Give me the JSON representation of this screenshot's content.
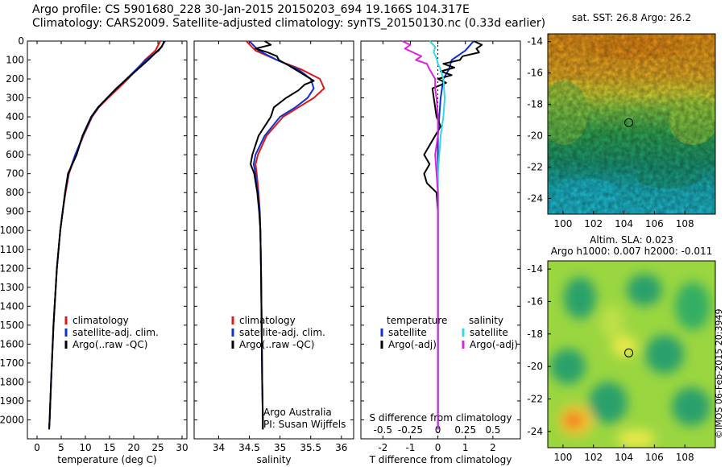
{
  "header": {
    "line1": "Argo profile: CS 5901680_228 30-Jan-2015 20150203_694 19.166S 104.317E",
    "line2": "Climatology: CARS2009. Satellite-adjusted climatology: synTS_20150130.nc (0.33d earlier)"
  },
  "credit": "©IMOS 06-Feb-2015 20:3949",
  "colors": {
    "climatology": "#e01818",
    "satellite": "#1030d0",
    "argo": "#000000",
    "sat_salinity": "#30d8e8",
    "argo_salinity": "#e020e0"
  },
  "chart_data": [
    {
      "type": "line",
      "name": "temperature",
      "xlabel": "temperature (deg C)",
      "xlim": [
        -2,
        31
      ],
      "xticks": [
        0,
        5,
        10,
        15,
        20,
        25,
        30
      ],
      "ylim": [
        0,
        2100
      ],
      "yticks": [
        0,
        100,
        200,
        300,
        400,
        500,
        600,
        700,
        800,
        900,
        1000,
        1100,
        1200,
        1300,
        1400,
        1500,
        1600,
        1700,
        1800,
        1900,
        2000
      ],
      "legend": [
        "climatology",
        "satellite-adj. clim.",
        "Argo(..raw -QC)"
      ],
      "series": [
        {
          "name": "climatology",
          "depth": [
            0,
            50,
            100,
            150,
            200,
            250,
            300,
            350,
            400,
            500,
            600,
            700,
            800,
            900,
            1000,
            1200,
            1500,
            1800,
            2000,
            2050
          ],
          "values": [
            25.5,
            24.5,
            22.3,
            20.6,
            18.8,
            16.8,
            14.7,
            12.8,
            11.4,
            9.6,
            8.0,
            6.6,
            5.9,
            5.3,
            4.8,
            4.1,
            3.4,
            2.9,
            2.6,
            2.5
          ]
        },
        {
          "name": "satellite-adj. clim.",
          "depth": [
            0,
            50,
            100,
            150,
            200,
            250,
            300,
            350,
            400,
            500,
            600,
            700,
            800,
            900,
            1000,
            1200,
            1500,
            1800,
            2000,
            2050
          ],
          "values": [
            26.5,
            25.2,
            22.5,
            20.5,
            18.5,
            16.5,
            14.5,
            12.7,
            11.3,
            9.5,
            7.9,
            6.5,
            5.8,
            5.3,
            4.8,
            4.1,
            3.4,
            2.9,
            2.6,
            2.5
          ]
        },
        {
          "name": "Argo(..raw -QC)",
          "depth": [
            0,
            30,
            60,
            100,
            150,
            200,
            250,
            300,
            350,
            400,
            500,
            600,
            650,
            700,
            800,
            900,
            1000,
            1200,
            1500,
            1800,
            2000,
            2050
          ],
          "values": [
            26.3,
            25.8,
            24.6,
            23.0,
            20.8,
            18.6,
            16.4,
            14.5,
            12.6,
            11.2,
            9.4,
            8.2,
            7.3,
            6.4,
            5.8,
            5.3,
            4.8,
            4.1,
            3.4,
            2.9,
            2.6,
            2.5
          ]
        }
      ]
    },
    {
      "type": "line",
      "name": "salinity",
      "xlabel": "salinity",
      "xlim": [
        33.6,
        36.2
      ],
      "xticks": [
        34,
        34.5,
        35,
        35.5,
        36
      ],
      "ylim": [
        0,
        2100
      ],
      "legend": [
        "climatology",
        "satellite-adj. clim.",
        "Argo(..raw -QC)"
      ],
      "annotation": [
        "Argo Australia",
        "PI: Susan Wijffels"
      ],
      "series": [
        {
          "name": "climatology",
          "depth": [
            0,
            50,
            100,
            150,
            200,
            250,
            300,
            350,
            400,
            500,
            600,
            650,
            700,
            800,
            900,
            1000,
            1200,
            1500,
            1800,
            2000,
            2050
          ],
          "values": [
            34.45,
            34.6,
            34.95,
            35.35,
            35.65,
            35.72,
            35.55,
            35.3,
            35.05,
            34.78,
            34.64,
            34.6,
            34.62,
            34.65,
            34.67,
            34.68,
            34.69,
            34.7,
            34.71,
            34.72,
            34.72
          ]
        },
        {
          "name": "satellite-adj. clim.",
          "depth": [
            0,
            50,
            100,
            150,
            200,
            250,
            300,
            350,
            400,
            500,
            600,
            650,
            700,
            800,
            900,
            1000,
            1200,
            1500,
            1800,
            2000,
            2050
          ],
          "values": [
            34.5,
            34.65,
            34.95,
            35.3,
            35.5,
            35.55,
            35.45,
            35.25,
            35.0,
            34.75,
            34.6,
            34.57,
            34.6,
            34.64,
            34.67,
            34.68,
            34.69,
            34.7,
            34.71,
            34.72,
            34.72
          ]
        },
        {
          "name": "Argo(..raw -QC)",
          "depth": [
            0,
            20,
            40,
            60,
            80,
            100,
            130,
            160,
            190,
            210,
            230,
            260,
            300,
            350,
            400,
            500,
            600,
            650,
            700,
            800,
            900,
            1000,
            1200,
            1500,
            1800,
            2000,
            2050
          ],
          "values": [
            34.75,
            34.85,
            34.6,
            34.8,
            34.95,
            34.98,
            35.15,
            35.3,
            35.45,
            35.55,
            35.4,
            35.3,
            35.1,
            34.9,
            34.85,
            34.65,
            34.55,
            34.52,
            34.58,
            34.63,
            34.66,
            34.68,
            34.69,
            34.7,
            34.71,
            34.72,
            34.72
          ]
        }
      ]
    },
    {
      "type": "line",
      "name": "difference",
      "xlabel": "T difference from climatology",
      "xlabel_top": "S difference from climatology",
      "xlim": [
        -2.8,
        3
      ],
      "xticks": [
        -2,
        -1,
        0,
        1,
        2
      ],
      "xticks_top": [
        "-0.5",
        "-0.25",
        "0",
        "0.25",
        "0.5"
      ],
      "ylim": [
        0,
        2100
      ],
      "legend_titles": [
        "temperature",
        "salinity"
      ],
      "legend": [
        "satellite",
        "Argo(-adj)",
        "satellite",
        "Argo(-adj)"
      ],
      "series": [
        {
          "name": "temperature satellite",
          "depth": [
            0,
            50,
            100,
            150,
            200,
            300,
            400,
            500,
            600,
            800,
            1000,
            1500,
            2050
          ],
          "values": [
            1.3,
            1.0,
            0.5,
            0.4,
            0.2,
            0.1,
            0.05,
            0.0,
            0.0,
            0.0,
            0.0,
            0.0,
            0.0
          ]
        },
        {
          "name": "temperature Argo(-adj)",
          "depth": [
            0,
            20,
            40,
            60,
            80,
            100,
            120,
            140,
            160,
            180,
            200,
            220,
            250,
            300,
            350,
            400,
            450,
            500,
            550,
            600,
            650,
            700,
            750,
            800,
            900,
            1000,
            1500,
            2050
          ],
          "values": [
            1.3,
            1.6,
            1.4,
            1.5,
            0.9,
            0.8,
            0.2,
            0.6,
            0.1,
            0.5,
            0.0,
            0.3,
            -0.2,
            -0.15,
            -0.1,
            -0.05,
            0.1,
            -0.1,
            -0.3,
            -0.5,
            -0.3,
            -0.5,
            -0.4,
            -0.05,
            0.0,
            0.0,
            0.0,
            0.0
          ]
        },
        {
          "name": "salinity satellite",
          "depth": [
            0,
            30,
            60,
            90,
            120,
            150,
            200,
            300,
            400,
            500,
            600,
            700,
            800,
            1000,
            1500,
            2050
          ],
          "values": [
            -0.3,
            -0.1,
            -0.15,
            -0.05,
            0.0,
            0.1,
            0.2,
            0.25,
            0.2,
            0.1,
            0.05,
            0.0,
            0.0,
            0.0,
            0.0,
            0.0
          ]
        },
        {
          "name": "salinity Argo(-adj)",
          "depth": [
            0,
            20,
            40,
            60,
            80,
            100,
            120,
            150,
            200,
            250,
            300,
            400,
            500,
            600,
            700,
            800,
            1000,
            1500,
            2050
          ],
          "values": [
            -1.3,
            -1.0,
            -1.2,
            -0.9,
            -0.6,
            -0.8,
            -0.4,
            -0.3,
            -0.1,
            -0.1,
            -0.05,
            0.0,
            0.0,
            -0.1,
            -0.05,
            0.0,
            0.0,
            0.0,
            0.0
          ]
        }
      ]
    },
    {
      "type": "heatmap",
      "name": "sst_map",
      "title": "sat. SST: 26.8 Argo: 26.2",
      "xlim": [
        99,
        110
      ],
      "xticks": [
        100,
        102,
        104,
        106,
        108
      ],
      "ylim": [
        -25,
        -13.5
      ],
      "yticks": [
        -14,
        -16,
        -18,
        -20,
        -22,
        -24
      ],
      "marker": [
        104.317,
        -19.166
      ]
    },
    {
      "type": "heatmap",
      "name": "sla_map",
      "title": "Altim. SLA: 0.023",
      "subtitle": "Argo h1000: 0.007 h2000: -0.011",
      "xlim": [
        99,
        110
      ],
      "xticks": [
        100,
        102,
        104,
        106,
        108
      ],
      "ylim": [
        -25,
        -13.5
      ],
      "yticks": [
        -14,
        -16,
        -18,
        -20,
        -22,
        -24
      ],
      "marker": [
        104.317,
        -19.166
      ]
    }
  ]
}
